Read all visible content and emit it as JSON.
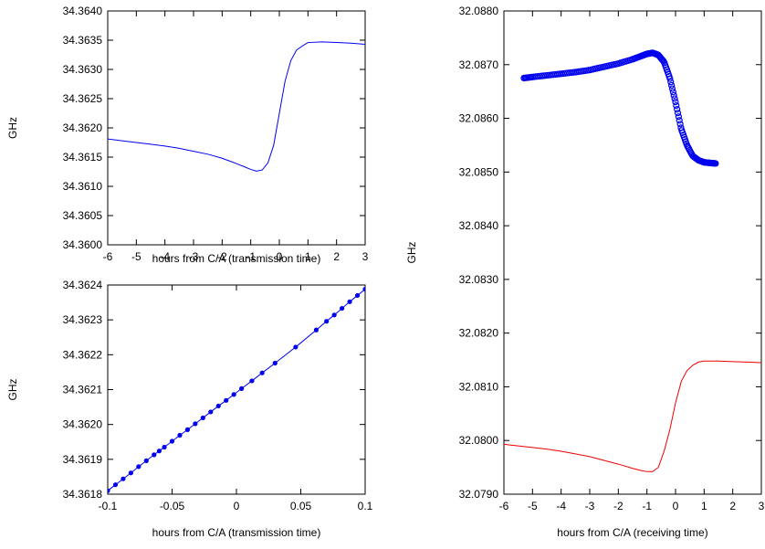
{
  "chart_data": [
    {
      "type": "line",
      "xlabel": "hours from C/A (transmission time)",
      "ylabel": "GHz",
      "xlim": [
        -6,
        3
      ],
      "ylim": [
        34.36,
        34.364
      ],
      "x_ticks": [
        "-6",
        "-5",
        "-4",
        "-3",
        "-2",
        "-1",
        "0",
        "1",
        "2",
        "3"
      ],
      "y_ticks": [
        "34.3600",
        "34.3605",
        "34.3610",
        "34.3615",
        "34.3620",
        "34.3625",
        "34.3630",
        "34.3635",
        "34.3640"
      ],
      "grid": false,
      "color": "#0000ee",
      "series": [
        {
          "x": [
            -6,
            -5.5,
            -5,
            -4.5,
            -4,
            -3.5,
            -3,
            -2.5,
            -2,
            -1.5,
            -1.2,
            -1,
            -0.8,
            -0.6,
            -0.4,
            -0.2,
            0,
            0.2,
            0.4,
            0.6,
            0.8,
            1,
            1.5,
            2,
            2.5,
            3
          ],
          "y": [
            34.36181,
            34.36178,
            34.36175,
            34.36172,
            34.36169,
            34.36165,
            34.3616,
            34.36155,
            34.36148,
            34.36139,
            34.36133,
            34.36129,
            34.36126,
            34.36128,
            34.3614,
            34.3617,
            34.36225,
            34.3628,
            34.36315,
            34.36333,
            34.3634,
            34.36346,
            34.36347,
            34.36346,
            34.36345,
            34.36343
          ]
        }
      ]
    },
    {
      "type": "line",
      "xlabel": "hours from C/A (transmission time)",
      "ylabel": "GHz",
      "xlim": [
        -0.1,
        0.1
      ],
      "ylim": [
        34.3618,
        34.3624
      ],
      "x_ticks": [
        "-0.1",
        "-0.05",
        "0",
        "0.05",
        "0.1"
      ],
      "y_ticks": [
        "34.3618",
        "34.3619",
        "34.3620",
        "34.3621",
        "34.3622",
        "34.3623",
        "34.3624"
      ],
      "grid": false,
      "color": "#0000ee",
      "markers": true,
      "series": [
        {
          "x": [
            -0.1,
            -0.094,
            -0.088,
            -0.082,
            -0.076,
            -0.07,
            -0.064,
            -0.06,
            -0.056,
            -0.05,
            -0.044,
            -0.038,
            -0.032,
            -0.026,
            -0.02,
            -0.014,
            -0.008,
            -0.002,
            0.004,
            0.012,
            0.02,
            0.03,
            0.046,
            0.062,
            0.07,
            0.076,
            0.082,
            0.088,
            0.094,
            0.1
          ],
          "y": [
            34.36181,
            34.361827,
            34.361844,
            34.361861,
            34.361879,
            34.361896,
            34.361913,
            34.361924,
            34.361935,
            34.361952,
            34.361969,
            34.361985,
            34.362002,
            34.362019,
            34.362036,
            34.362053,
            34.362069,
            34.362086,
            34.362103,
            34.362125,
            34.362148,
            34.362176,
            34.362222,
            34.362271,
            34.362296,
            34.362314,
            34.362333,
            34.362352,
            34.36237,
            34.362388
          ]
        }
      ]
    },
    {
      "type": "line",
      "xlabel": "hours from C/A (receiving time)",
      "ylabel": "GHz",
      "xlim": [
        -6,
        3
      ],
      "ylim": [
        32.079,
        32.088
      ],
      "x_ticks": [
        "-6",
        "-5",
        "-4",
        "-3",
        "-2",
        "-1",
        "0",
        "1",
        "2",
        "3"
      ],
      "y_ticks": [
        "32.0790",
        "32.0800",
        "32.0810",
        "32.0820",
        "32.0830",
        "32.0840",
        "32.0850",
        "32.0860",
        "32.0870",
        "32.0880"
      ],
      "grid": false,
      "series": [
        {
          "color": "#0000ee",
          "marker": "circle",
          "x": [
            -5.3,
            -5,
            -4.5,
            -4,
            -3.5,
            -3,
            -2.5,
            -2,
            -1.5,
            -1.2,
            -1,
            -0.8,
            -0.6,
            -0.4,
            -0.2,
            0,
            0.2,
            0.4,
            0.6,
            0.8,
            1,
            1.2,
            1.4
          ],
          "y": [
            32.08675,
            32.08677,
            32.0868,
            32.08683,
            32.08686,
            32.0869,
            32.08696,
            32.08702,
            32.0871,
            32.08716,
            32.0872,
            32.08722,
            32.08718,
            32.08705,
            32.08675,
            32.0863,
            32.0858,
            32.0855,
            32.0853,
            32.08522,
            32.08518,
            32.08517,
            32.08516
          ]
        },
        {
          "color": "#ee0000",
          "x": [
            -6,
            -5.5,
            -5,
            -4.5,
            -4,
            -3.5,
            -3,
            -2.5,
            -2,
            -1.5,
            -1.2,
            -1,
            -0.8,
            -0.6,
            -0.4,
            -0.2,
            0,
            0.2,
            0.4,
            0.6,
            0.8,
            1,
            1.5,
            2,
            2.5,
            3
          ],
          "y": [
            32.07993,
            32.0799,
            32.07987,
            32.07984,
            32.0798,
            32.07975,
            32.0797,
            32.07963,
            32.07956,
            32.07948,
            32.07944,
            32.07942,
            32.07942,
            32.0795,
            32.0798,
            32.0802,
            32.0807,
            32.0811,
            32.0813,
            32.0814,
            32.08146,
            32.08148,
            32.08148,
            32.08147,
            32.08146,
            32.08145
          ]
        }
      ]
    }
  ]
}
